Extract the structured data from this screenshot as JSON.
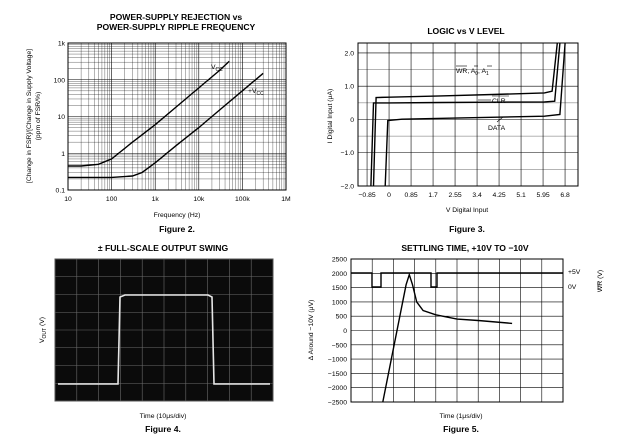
{
  "chart_data": [
    {
      "type": "line",
      "figure": "Figure 2.",
      "title": "POWER-SUPPLY REJECTION vs",
      "subtitle": "POWER-SUPPLY RIPPLE FREQUENCY",
      "xlabel": "Frequency (Hz)",
      "ylabel": "[Change in FSR]/[Change in Supply Voltage] (ppm of FSR/%)",
      "xscale": "log",
      "yscale": "log",
      "xlim": [
        10,
        1000000
      ],
      "ylim": [
        0.1,
        1000
      ],
      "x_ticks": [
        "10",
        "100",
        "1k",
        "10k",
        "100k",
        "1M"
      ],
      "y_ticks": [
        "0.1",
        "1",
        "10",
        "100",
        "1k"
      ],
      "series": [
        {
          "name": "V_CC",
          "x": [
            10,
            20,
            50,
            100,
            300,
            1000,
            3000,
            10000,
            30000,
            50000
          ],
          "y": [
            0.45,
            0.45,
            0.5,
            0.7,
            2,
            6,
            18,
            60,
            180,
            320
          ]
        },
        {
          "name": "+V_CC",
          "x": [
            10,
            100,
            300,
            500,
            1000,
            3000,
            10000,
            30000,
            100000,
            300000
          ],
          "y": [
            0.22,
            0.22,
            0.24,
            0.3,
            0.55,
            1.6,
            5,
            15,
            50,
            150
          ]
        }
      ],
      "labels": {
        "vcc_label": "V",
        "vcc_sub": "CC",
        "pvcc_label": "+V",
        "pvcc_sub": "CC"
      }
    },
    {
      "type": "line",
      "figure": "Figure 3.",
      "title": "LOGIC vs V LEVEL",
      "xlabel": "V Digital Input",
      "ylabel": "I Digital Input (μA)",
      "xlim": [
        -1.2,
        7.3
      ],
      "ylim": [
        -2.0,
        2.3
      ],
      "x_ticks": [
        "−0.85",
        "0",
        "0.85",
        "1.7",
        "2.55",
        "3.4",
        "4.25",
        "5.1",
        "5.95",
        "6.8"
      ],
      "y_ticks": [
        "2.0",
        "1.0",
        "0",
        "−1.0",
        "−2.0"
      ],
      "series": [
        {
          "name": "WR, A0, A1",
          "x": [
            -0.6,
            -0.5,
            0,
            2,
            4,
            6,
            6.3,
            6.5
          ],
          "y": [
            -2.0,
            0.66,
            0.67,
            0.71,
            0.75,
            0.8,
            0.85,
            2.3
          ]
        },
        {
          "name": "CLR",
          "x": [
            -0.7,
            -0.6,
            0,
            2,
            4,
            6,
            6.4,
            6.6
          ],
          "y": [
            -2.0,
            0.5,
            0.5,
            0.51,
            0.52,
            0.53,
            0.55,
            2.3
          ]
        },
        {
          "name": "DATA",
          "x": [
            -0.15,
            -0.05,
            0.5,
            3,
            6,
            6.6,
            6.8
          ],
          "y": [
            -2.0,
            -0.03,
            0.01,
            0.05,
            0.1,
            0.15,
            2.3
          ]
        }
      ],
      "labels": {
        "wr": "WR, A",
        "a0": "0",
        "a1": "A",
        "a1sub": "1",
        "clr": "CLR",
        "data": "DATA"
      }
    },
    {
      "type": "line",
      "figure": "Figure 4.",
      "title": "± FULL-SCALE OUTPUT SWING",
      "xlabel": "Time (10μs/div)",
      "ylabel": "V",
      "ylabel_sub": "OUT",
      "ylabel_unit": "(V)",
      "grid": "10x8 oscilloscope"
    },
    {
      "type": "line",
      "figure": "Figure 5.",
      "title": "SETTLING TIME, +10V TO −10V",
      "xlabel": "Time (1μs/div)",
      "ylabel": "Δ Around −10V (μV)",
      "ylabel_right": "WR (V)",
      "right_labels": [
        "+5V",
        "0V"
      ],
      "ylim": [
        -2500,
        2500
      ],
      "y_ticks": [
        "2500",
        "2000",
        "1500",
        "1000",
        "500",
        "0",
        "−500",
        "−1000",
        "−1500",
        "−2000",
        "−2500"
      ],
      "series": [
        {
          "name": "settling",
          "x": [
            1.5,
            2.6,
            2.75,
            2.9,
            3.1,
            3.4,
            4,
            5,
            6,
            7.6
          ],
          "y": [
            -2500,
            1600,
            1950,
            1600,
            1000,
            700,
            550,
            400,
            350,
            250
          ]
        }
      ]
    }
  ]
}
